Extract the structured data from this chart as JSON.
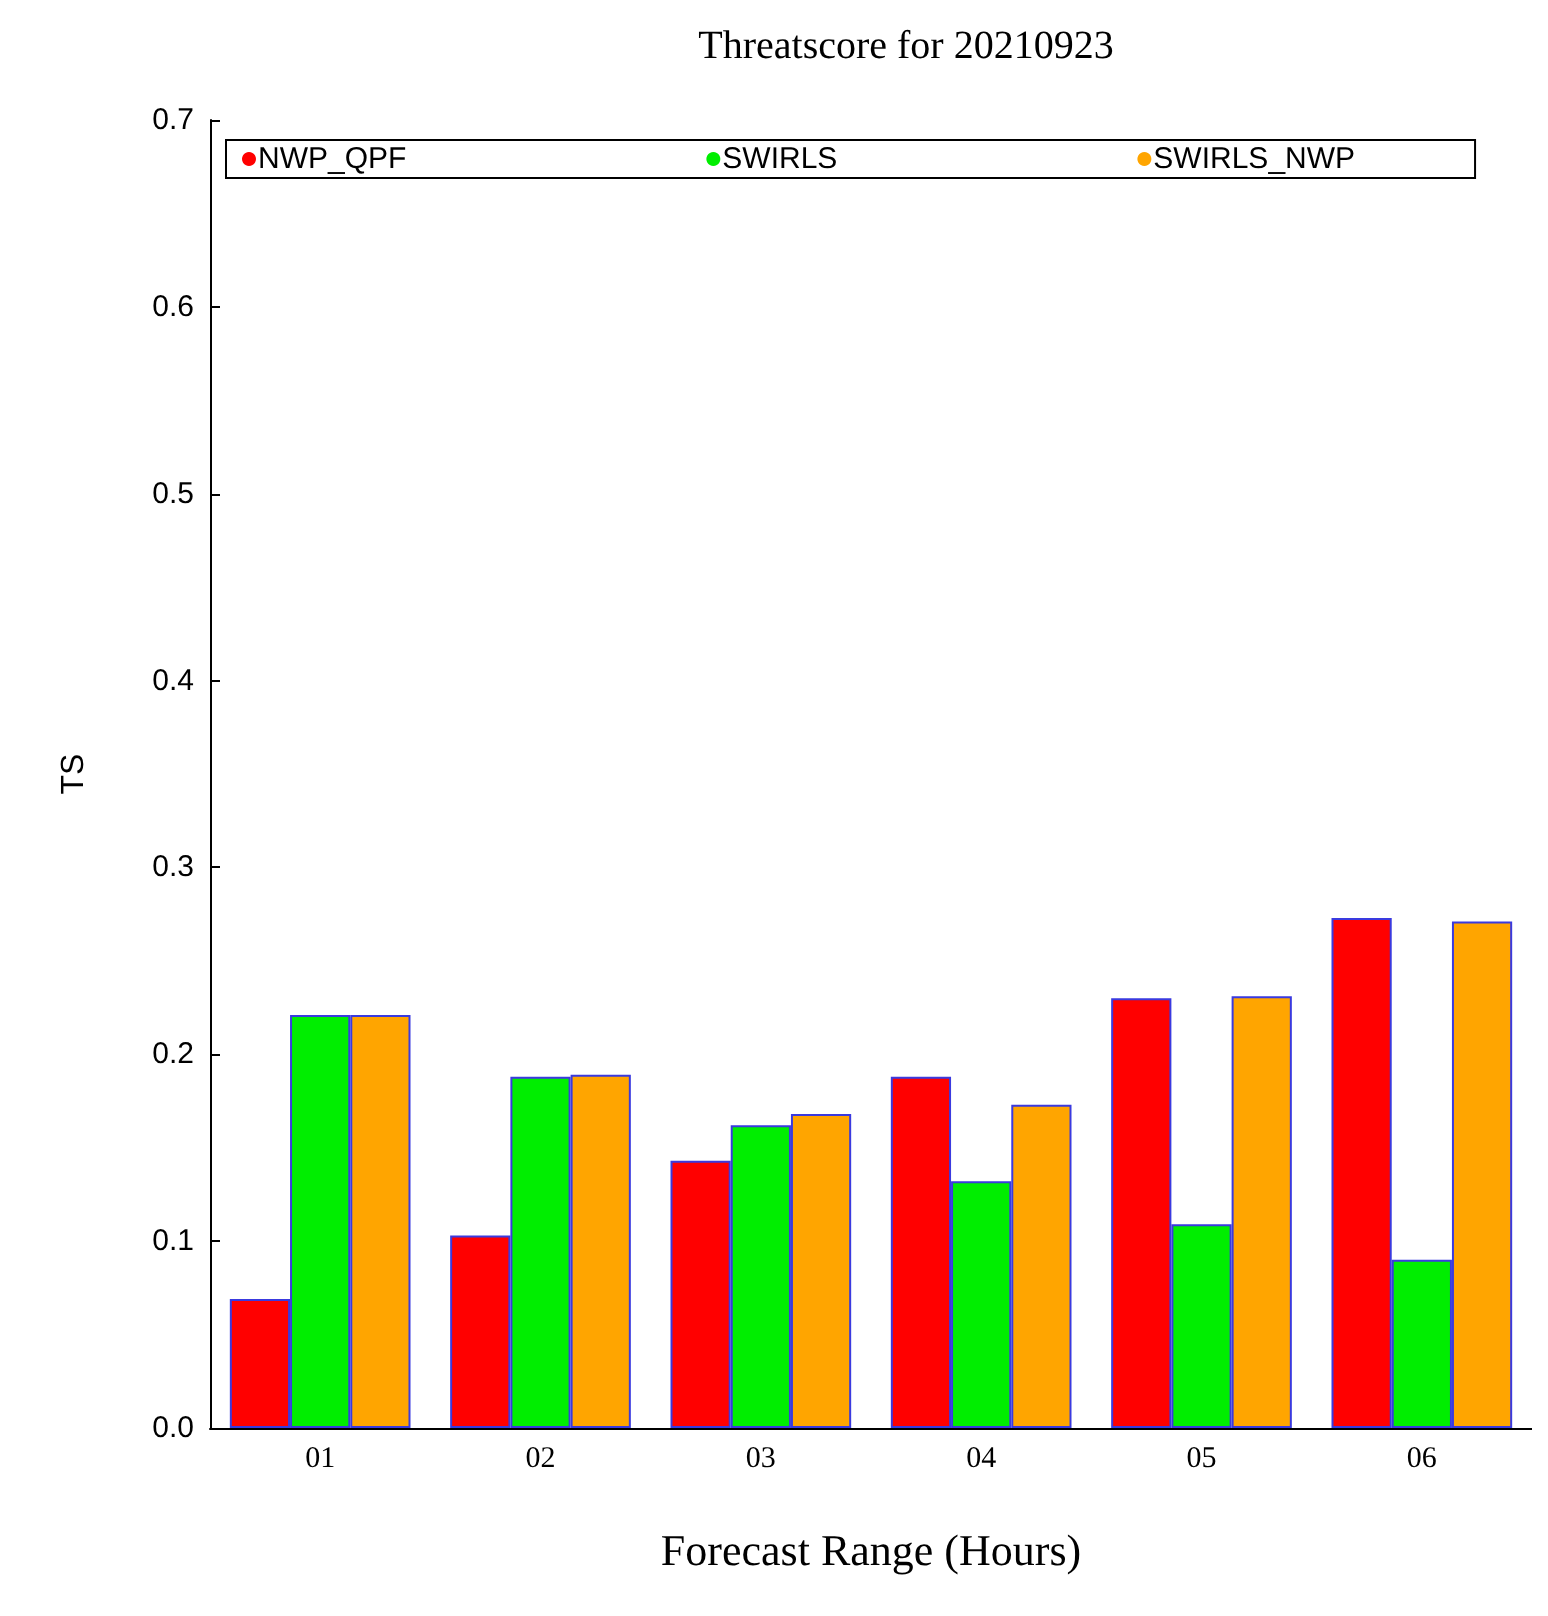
{
  "chart_data": {
    "type": "bar",
    "title": "Threatscore for 20210923",
    "xlabel": "Forecast Range (Hours)",
    "ylabel": "TS",
    "categories": [
      "01",
      "02",
      "03",
      "04",
      "05",
      "06"
    ],
    "series": [
      {
        "name": "NWP_QPF",
        "color": "#ff0000",
        "values": [
          0.069,
          0.103,
          0.143,
          0.188,
          0.23,
          0.273
        ]
      },
      {
        "name": "SWIRLS",
        "color": "#00ee00",
        "values": [
          0.221,
          0.188,
          0.162,
          0.132,
          0.109,
          0.09
        ]
      },
      {
        "name": "SWIRLS_NWP",
        "color": "#ffa500",
        "values": [
          0.221,
          0.189,
          0.168,
          0.173,
          0.231,
          0.271
        ]
      }
    ],
    "ylim": [
      0,
      0.7
    ],
    "yticks": [
      {
        "value": 0,
        "label": "0.0"
      },
      {
        "value": 0.1,
        "label": "0.1"
      },
      {
        "value": 0.2,
        "label": "0.2"
      },
      {
        "value": 0.3,
        "label": "0.3"
      },
      {
        "value": 0.4,
        "label": "0.4"
      },
      {
        "value": 0.5,
        "label": "0.5"
      },
      {
        "value": 0.6,
        "label": "0.6"
      },
      {
        "value": 0.7,
        "label": "0.7"
      }
    ],
    "grid": false,
    "legend": "top"
  }
}
